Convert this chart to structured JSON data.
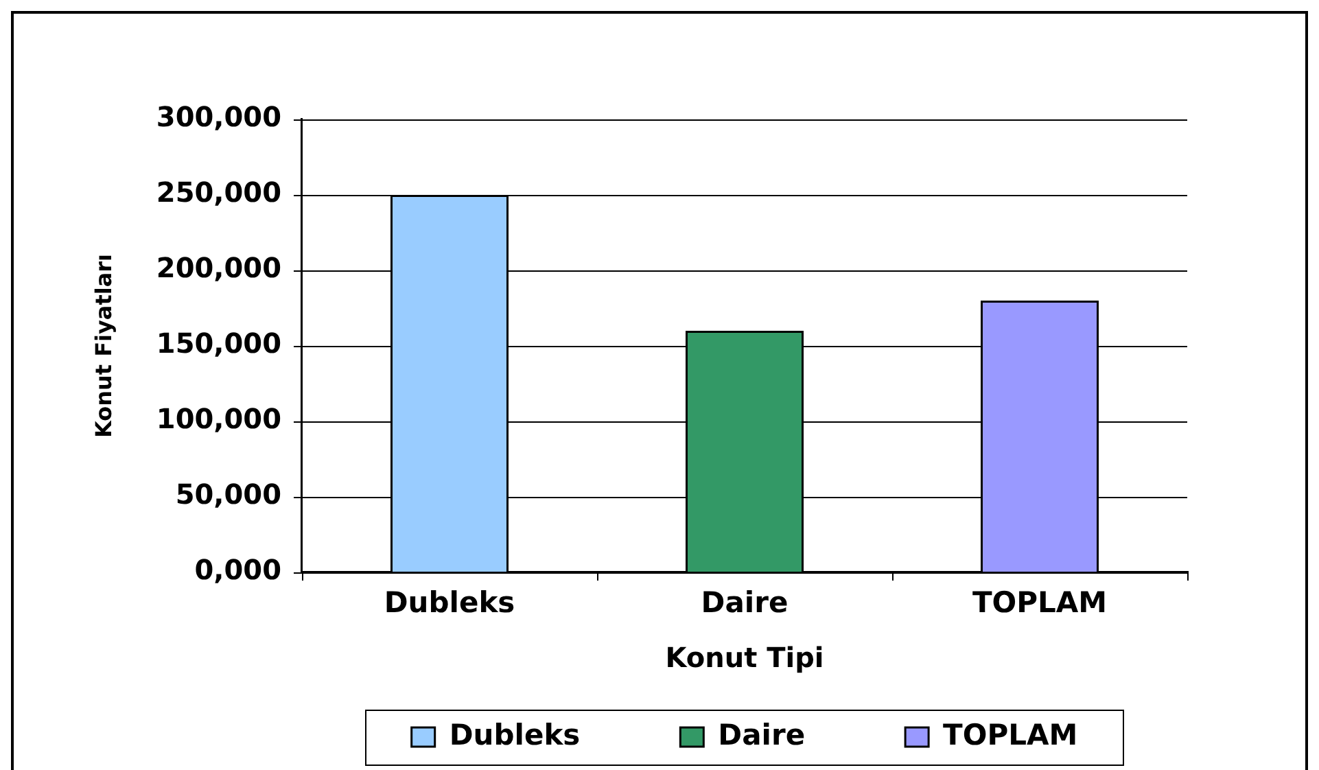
{
  "chart_data": {
    "type": "bar",
    "xlabel": "Konut Tipi",
    "ylabel": "Konut Fiyatları",
    "categories": [
      "Dubleks",
      "Daire",
      "TOPLAM"
    ],
    "series": [
      {
        "name": "Dubleks",
        "color": "#99ccff",
        "values": [
          250000,
          null,
          null
        ]
      },
      {
        "name": "Daire",
        "color": "#339966",
        "values": [
          null,
          160000,
          null
        ]
      },
      {
        "name": "TOPLAM",
        "color": "#9999ff",
        "values": [
          null,
          null,
          180000
        ]
      }
    ],
    "ylim": [
      0,
      300000
    ],
    "yticks": [
      {
        "value": 0,
        "label": "0,000"
      },
      {
        "value": 50000,
        "label": "50,000"
      },
      {
        "value": 100000,
        "label": "100,000"
      },
      {
        "value": 150000,
        "label": "150,000"
      },
      {
        "value": 200000,
        "label": "200,000"
      },
      {
        "value": 250000,
        "label": "250,000"
      },
      {
        "value": 300000,
        "label": "300,000"
      }
    ],
    "grid": "y",
    "legend": "bottom"
  }
}
